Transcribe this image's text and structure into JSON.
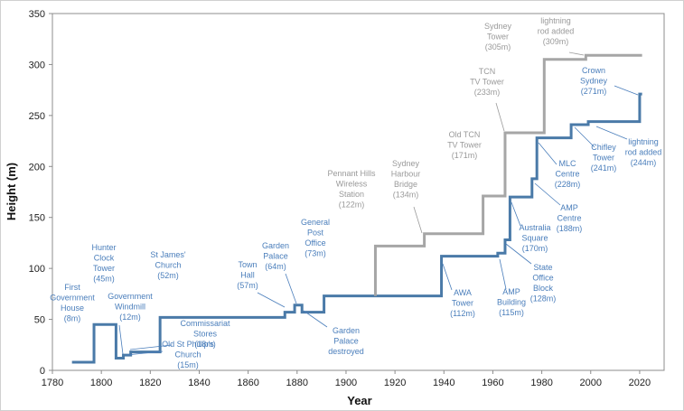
{
  "chart_data": {
    "type": "step",
    "x_label": "Year",
    "y_label": "Height (m)",
    "xlim": [
      1780,
      2030
    ],
    "ylim": [
      0,
      350
    ],
    "xticks": [
      1780,
      1800,
      1820,
      1840,
      1860,
      1880,
      1900,
      1920,
      1940,
      1960,
      1980,
      2000,
      2020
    ],
    "yticks": [
      0,
      50,
      100,
      150,
      200,
      250,
      300,
      350
    ],
    "grid": false,
    "series": [
      {
        "color": "#4a7aa8",
        "label_color": "#4a7ebb",
        "x": [
          1788,
          1797,
          1806,
          1809,
          1812,
          1824,
          1875,
          1879,
          1882,
          1891,
          1939,
          1962,
          1965,
          1967,
          1976,
          1978,
          1992,
          1999,
          2020,
          2021
        ],
        "values": [
          8,
          45,
          12,
          15,
          18,
          52,
          57,
          64,
          57,
          73,
          112,
          115,
          128,
          170,
          188,
          228,
          241,
          244,
          271,
          271
        ],
        "labels": [
          "First\nGovernment\nHouse\n(8m)",
          "Hunter\nClock\nTower\n(45m)",
          "Government\nWindmill\n(12m)",
          "St James'\nChurch\n(52m)",
          "Commissariat\nStores\n(18m)",
          "Old St Phillip's\nChurch\n(15m)",
          "Town\nHall\n(57m)",
          "Garden\nPalace\n(64m)",
          "General\nPost\nOffice\n(73m)",
          "Garden\nPalace\ndestroyed",
          "AWA\nTower\n(112m)",
          "AMP\nBuilding\n(115m)",
          "State\nOffice\nBlock\n(128m)",
          "Australia\nSquare\n(170m)",
          "AMP\nCentre\n(188m)",
          "MLC\nCentre\n(228m)",
          "Chifley\nTower\n(241m)",
          "lightning\nrod added\n(244m)",
          "Crown\nSydney\n(271m)"
        ]
      },
      {
        "color": "#a6a6a6",
        "label_color": "#9a9a9a",
        "x": [
          1912,
          1912,
          1932,
          1956,
          1965,
          1981,
          1998,
          2021
        ],
        "values": [
          73,
          122,
          134,
          171,
          233,
          305,
          309,
          309
        ],
        "labels": [
          "Pennant Hills\nWireless\nStation\n(122m)",
          "Sydney\nHarbour\nBridge\n(134m)",
          "Old TCN\nTV Tower\n(171m)",
          "TCN\nTV Tower\n(233m)",
          "Sydney\nTower\n(305m)",
          "lightning\nrod added\n(309m)"
        ]
      }
    ]
  }
}
